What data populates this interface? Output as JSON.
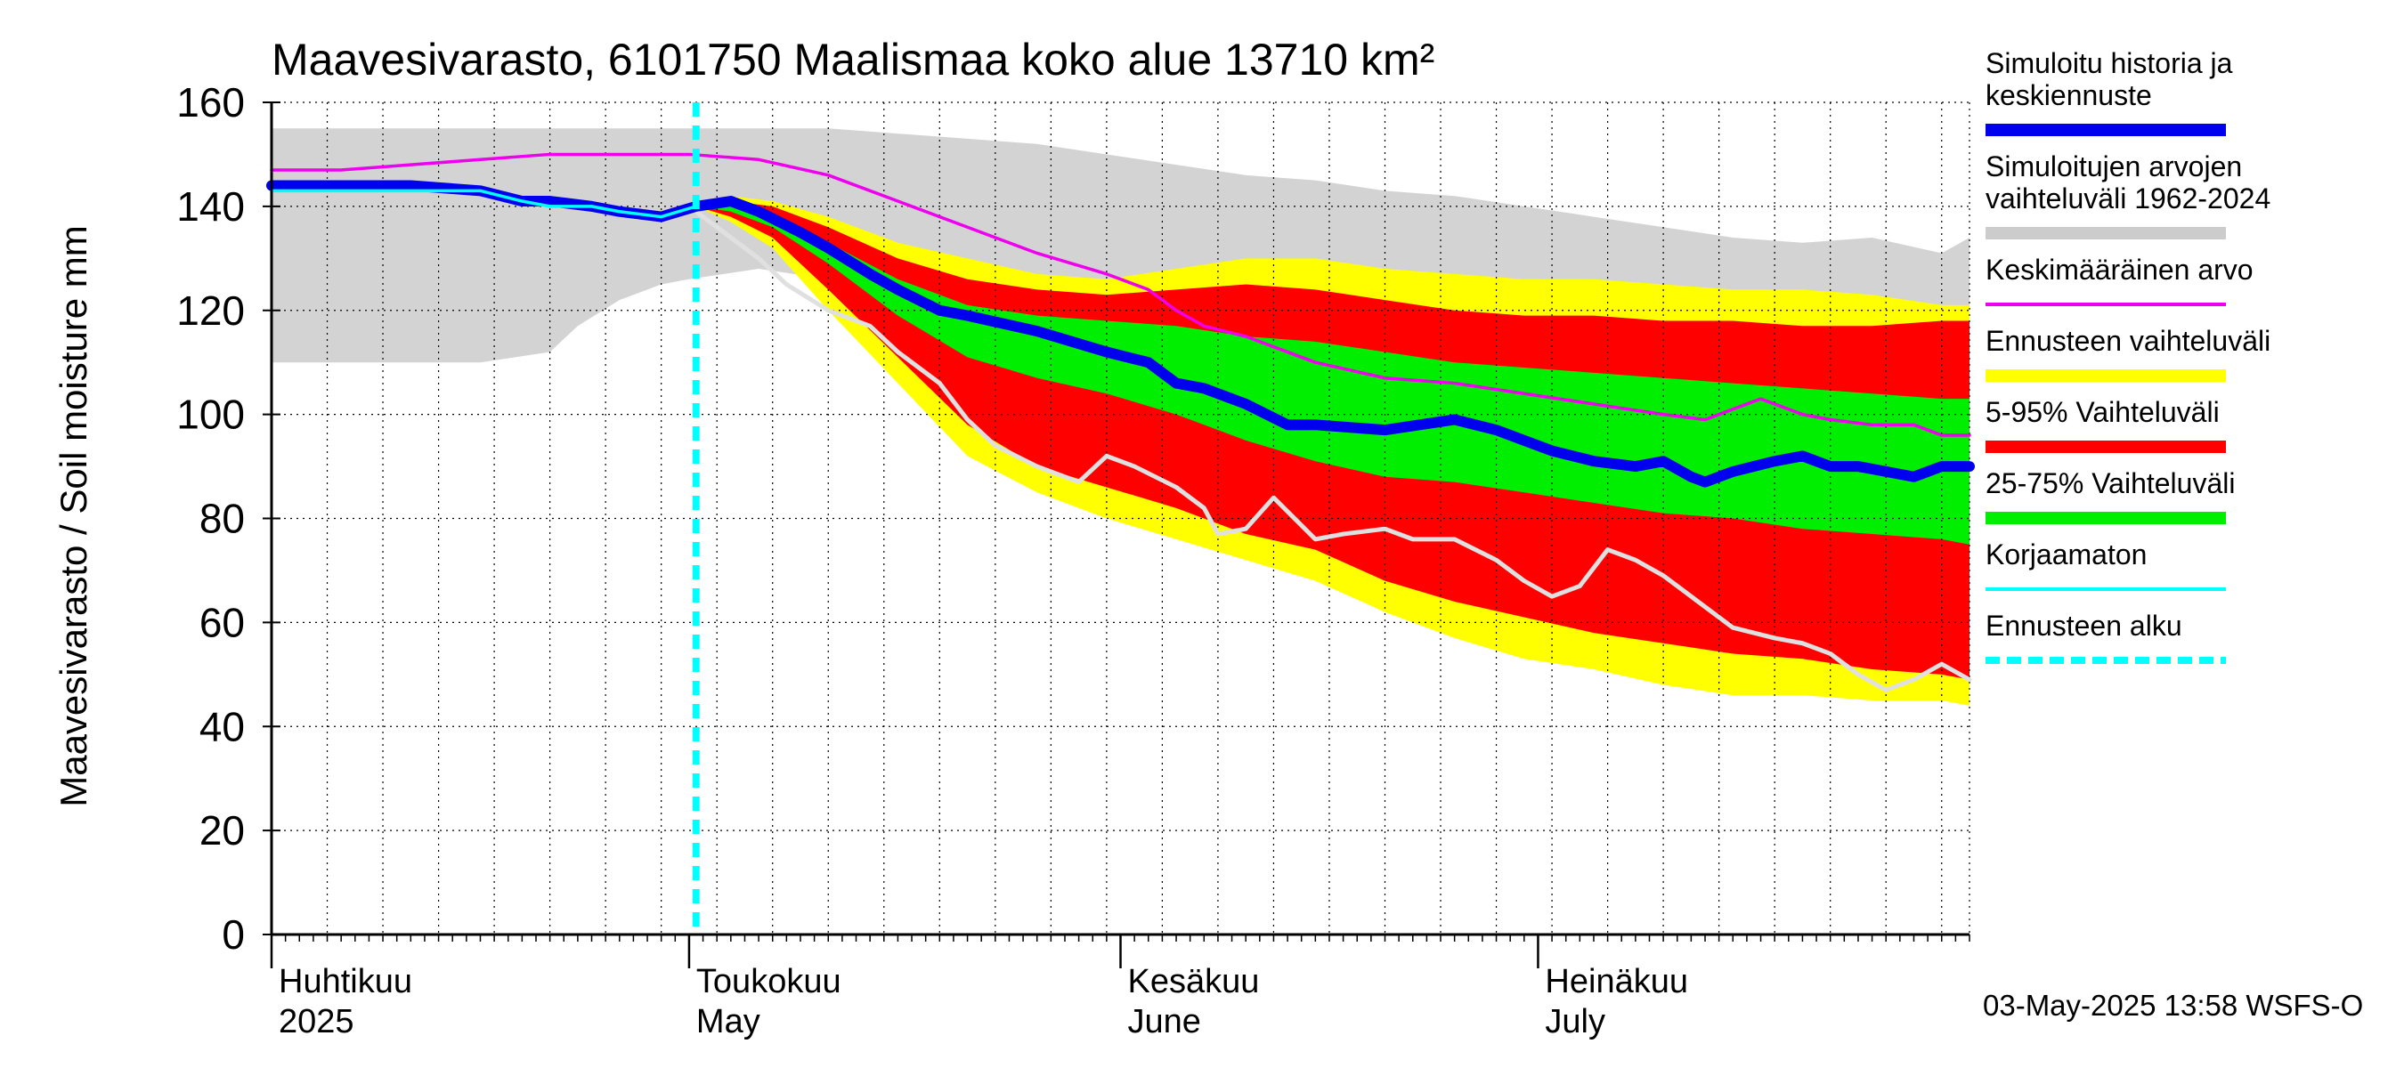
{
  "chart_data": {
    "type": "line",
    "title": "Maavesivarasto, 6101750 Maalismaa koko alue 13710 km²",
    "ylabel": "Maavesivarasto / Soil moisture   mm",
    "xlabel": "",
    "ylim": [
      0,
      160
    ],
    "yticks": [
      0,
      20,
      40,
      60,
      80,
      100,
      120,
      140,
      160
    ],
    "grid": true,
    "x_unit": "days since 2025-04-01",
    "xlim": [
      0,
      122
    ],
    "forecast_start_day": 30.5,
    "month_labels": [
      {
        "day": 0,
        "fi": "Huhtikuu",
        "en": "2025"
      },
      {
        "day": 30,
        "fi": "Toukokuu",
        "en": "May"
      },
      {
        "day": 61,
        "fi": "Kesäkuu",
        "en": "June"
      },
      {
        "day": 91,
        "fi": "Heinäkuu",
        "en": "July"
      }
    ],
    "timestamp": "03-May-2025 13:58 WSFS-O",
    "legend": {
      "placement": "right",
      "items": [
        {
          "label": "Simuloitu historia ja keskiennuste",
          "color": "#0000ee",
          "kind": "thick"
        },
        {
          "label": "Simuloitujen arvojen vaihteluväli 1962-2024",
          "color": "#cccccc",
          "kind": "thick"
        },
        {
          "label": "Keskimääräinen arvo",
          "color": "#ee00ee",
          "kind": "thin"
        },
        {
          "label": "Ennusteen vaihteluväli",
          "color": "#ffff00",
          "kind": "thick"
        },
        {
          "label": "5-95% Vaihteluväli",
          "color": "#ff0000",
          "kind": "thick"
        },
        {
          "label": "25-75% Vaihteluväli",
          "color": "#00ee00",
          "kind": "thick"
        },
        {
          "label": "Korjaamaton",
          "color": "#00ffff",
          "kind": "thin"
        },
        {
          "label": "Ennusteen alku",
          "color": "#00ffff",
          "kind": "dashed"
        }
      ]
    },
    "series": [
      {
        "name": "Simuloitujen arvojen vaihteluväli 1962-2024",
        "kind": "band",
        "color": "#d3d3d3",
        "x": [
          0,
          5,
          10,
          15,
          20,
          22,
          25,
          28,
          30,
          35,
          40,
          45,
          50,
          55,
          60,
          65,
          70,
          75,
          80,
          85,
          90,
          95,
          100,
          105,
          110,
          115,
          120,
          122
        ],
        "upper": [
          155,
          155,
          155,
          155,
          155,
          155,
          155,
          155,
          155,
          155,
          155,
          154,
          153,
          152,
          150,
          148,
          146,
          145,
          143,
          142,
          140,
          138,
          136,
          134,
          133,
          134,
          131,
          134
        ],
        "lower": [
          110,
          110,
          110,
          110,
          112,
          117,
          122,
          125,
          126,
          128,
          126,
          122,
          119,
          118,
          118,
          119,
          118,
          119,
          117,
          117,
          118,
          119,
          121,
          120,
          120,
          121,
          120,
          121
        ]
      },
      {
        "name": "Ennusteen vaihteluväli",
        "kind": "band",
        "color": "#ffff00",
        "x": [
          30.5,
          33,
          36,
          40,
          45,
          50,
          55,
          60,
          65,
          70,
          75,
          80,
          85,
          90,
          95,
          100,
          105,
          110,
          115,
          120,
          122
        ],
        "upper": [
          141,
          142,
          141,
          138,
          133,
          130,
          127,
          126,
          128,
          130,
          130,
          128,
          127,
          126,
          126,
          125,
          124,
          124,
          123,
          121,
          121
        ],
        "lower": [
          140,
          137,
          132,
          120,
          106,
          92,
          85,
          80,
          76,
          72,
          68,
          62,
          57,
          53,
          51,
          48,
          46,
          46,
          45,
          45,
          44
        ]
      },
      {
        "name": "5-95% Vaihteluväli",
        "kind": "band",
        "color": "#ff0000",
        "x": [
          30.5,
          33,
          36,
          40,
          45,
          50,
          55,
          60,
          65,
          70,
          75,
          80,
          85,
          90,
          95,
          100,
          105,
          110,
          115,
          120,
          122
        ],
        "upper": [
          141,
          141,
          140,
          136,
          130,
          126,
          124,
          123,
          124,
          125,
          124,
          122,
          120,
          119,
          119,
          118,
          118,
          117,
          117,
          118,
          118
        ],
        "lower": [
          140,
          138,
          134,
          124,
          111,
          98,
          90,
          86,
          82,
          77,
          74,
          68,
          64,
          61,
          58,
          56,
          54,
          53,
          51,
          50,
          49
        ]
      },
      {
        "name": "25-75% Vaihteluväli",
        "kind": "band",
        "color": "#00ee00",
        "x": [
          30.5,
          33,
          36,
          40,
          45,
          50,
          55,
          60,
          65,
          70,
          75,
          80,
          85,
          90,
          95,
          100,
          105,
          110,
          115,
          120,
          122
        ],
        "upper": [
          140,
          140,
          138,
          133,
          126,
          121,
          119,
          118,
          117,
          115,
          114,
          112,
          110,
          109,
          108,
          107,
          106,
          105,
          104,
          103,
          103
        ],
        "lower": [
          140,
          139,
          136,
          129,
          119,
          111,
          107,
          104,
          100,
          95,
          91,
          88,
          87,
          85,
          83,
          81,
          80,
          78,
          77,
          76,
          75
        ]
      },
      {
        "name": "Korjaamaton",
        "kind": "line",
        "color": "#e0e0e0",
        "x": [
          30.5,
          33,
          35,
          37,
          40,
          43,
          45,
          48,
          50,
          52,
          55,
          58,
          60,
          62,
          65,
          67,
          68,
          70,
          72,
          75,
          77,
          80,
          82,
          85,
          88,
          90,
          92,
          94,
          96,
          98,
          100,
          102,
          105,
          108,
          110,
          112,
          114,
          116,
          118,
          120,
          122
        ],
        "y": [
          139,
          134,
          130,
          125,
          120,
          117,
          112,
          106,
          99,
          94,
          90,
          87,
          92,
          90,
          86,
          82,
          77,
          78,
          84,
          76,
          77,
          78,
          76,
          76,
          72,
          68,
          65,
          67,
          74,
          72,
          69,
          65,
          59,
          57,
          56,
          54,
          50,
          47,
          49,
          52,
          49
        ]
      },
      {
        "name": "Keskimääräinen arvo",
        "kind": "line",
        "color": "#ee00ee",
        "x": [
          0,
          5,
          10,
          15,
          20,
          25,
          30,
          35,
          40,
          45,
          50,
          55,
          60,
          63,
          65,
          67,
          70,
          75,
          80,
          85,
          90,
          95,
          100,
          103,
          105,
          107,
          110,
          112,
          115,
          118,
          120,
          122
        ],
        "y": [
          147,
          147,
          148,
          149,
          150,
          150,
          150,
          149,
          146,
          141,
          136,
          131,
          127,
          124,
          120,
          117,
          115,
          110,
          107,
          106,
          104,
          102,
          100,
          99,
          101,
          103,
          100,
          99,
          98,
          98,
          96,
          96
        ]
      },
      {
        "name": "Simuloitu historia ja keskiennuste",
        "kind": "line",
        "color": "#0000ee",
        "x": [
          0,
          5,
          10,
          15,
          18,
          20,
          23,
          25,
          28,
          30.5,
          33,
          35,
          38,
          40,
          43,
          45,
          48,
          50,
          55,
          60,
          63,
          65,
          67,
          70,
          73,
          75,
          80,
          85,
          88,
          90,
          92,
          95,
          98,
          100,
          102,
          103,
          105,
          108,
          110,
          112,
          114,
          116,
          118,
          120,
          122
        ],
        "y": [
          144,
          144,
          144,
          143,
          141,
          141,
          140,
          139,
          138,
          140,
          141,
          139,
          135,
          132,
          127,
          124,
          120,
          119,
          116,
          112,
          110,
          106,
          105,
          102,
          98,
          98,
          97,
          99,
          97,
          95,
          93,
          91,
          90,
          91,
          88,
          87,
          89,
          91,
          92,
          90,
          90,
          89,
          88,
          90,
          90
        ]
      },
      {
        "name": "Korjaamaton (history)",
        "kind": "line",
        "color": "#00ffff",
        "x": [
          0,
          5,
          10,
          15,
          18,
          20,
          23,
          25,
          28,
          30.5
        ],
        "y": [
          143,
          143,
          143,
          143,
          141,
          140,
          140,
          139,
          138,
          140
        ]
      }
    ]
  }
}
